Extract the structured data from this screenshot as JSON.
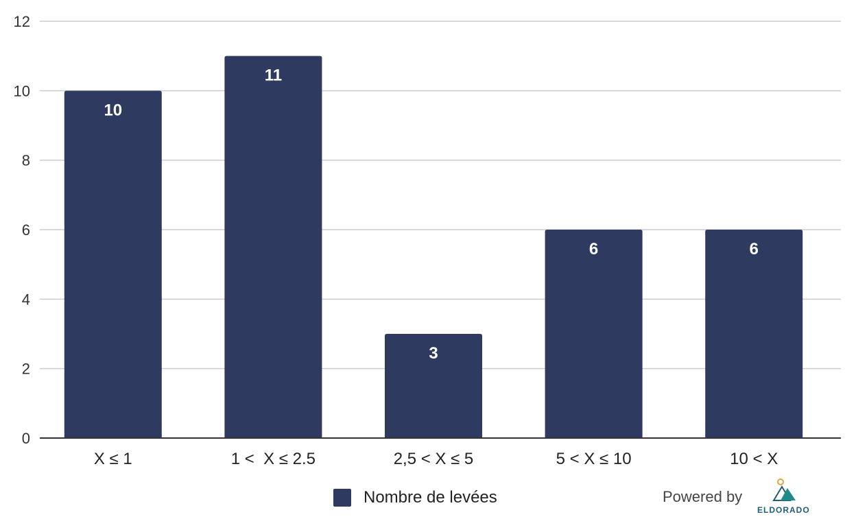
{
  "chart_data": {
    "type": "bar",
    "categories": [
      "X ≤ 1",
      "1 <  X ≤ 2.5",
      "2,5 < X ≤ 5",
      "5 < X ≤ 10",
      "10 < X"
    ],
    "series": [
      {
        "name": "Nombre de levées",
        "values": [
          10,
          11,
          3,
          6,
          6
        ]
      }
    ],
    "data_labels": [
      "10",
      "11",
      "3",
      "6",
      "6"
    ],
    "ylim": [
      0,
      12
    ],
    "yticks": [
      0,
      2,
      4,
      6,
      8,
      10,
      12
    ],
    "title": "",
    "xlabel": "",
    "ylabel": "",
    "grid": true,
    "legend_position": "bottom"
  },
  "colors": {
    "bar": "#2e3a5f",
    "grid": "#cccccc",
    "axis": "#333333",
    "label_text": "#ffffff"
  },
  "footer": {
    "powered_by": "Powered by",
    "logo_text": "ELDORADO"
  }
}
